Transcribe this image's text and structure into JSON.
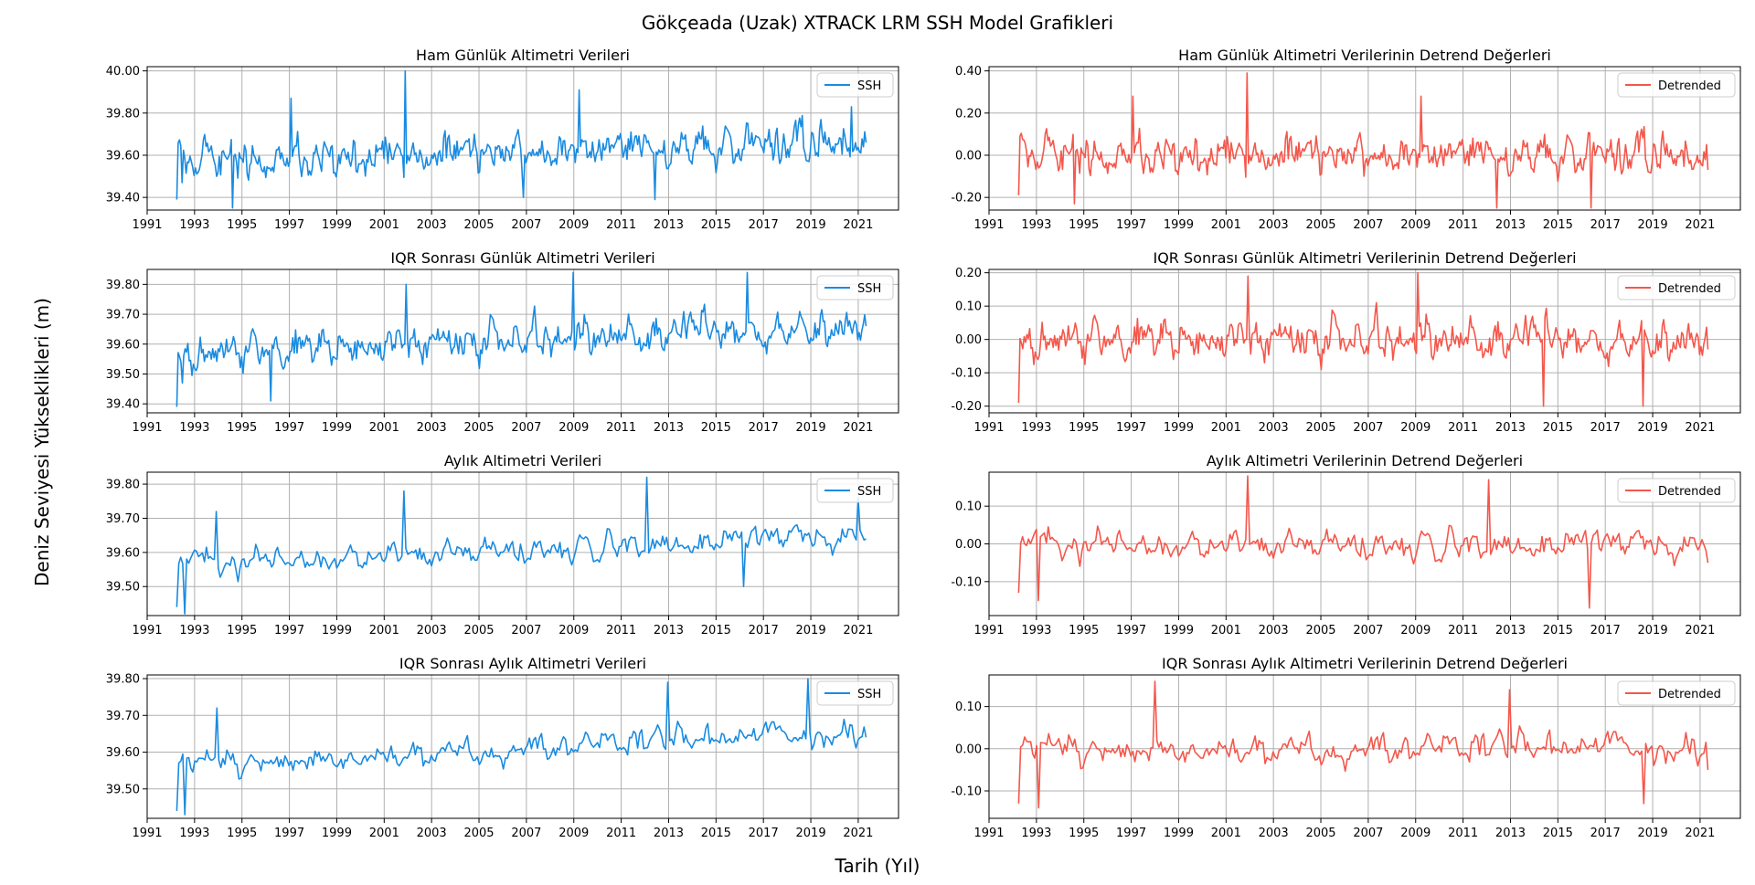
{
  "figure": {
    "suptitle": "Gökçeada (Uzak) XTRACK LRM SSH Model Grafikleri",
    "xlabel": "Tarih (Yıl)",
    "ylabel": "Deniz Seviyesi Yükseklikleri (m)"
  },
  "colors": {
    "ssh": "#1a8be0",
    "detrended": "#f4574b",
    "grid": "#b0b0b0"
  },
  "chart_data": [
    {
      "type": "line",
      "title": "Ham Günlük Altimetri Verileri",
      "xlim": [
        1991.0,
        2022.7
      ],
      "ylim": [
        39.34,
        40.02
      ],
      "xticks": [
        1991,
        1993,
        1995,
        1997,
        1999,
        2001,
        2003,
        2005,
        2007,
        2009,
        2011,
        2013,
        2015,
        2017,
        2019,
        2021
      ],
      "yticks": [
        39.4,
        39.6,
        39.8,
        40.0
      ],
      "ytick_labels": [
        "39.40",
        "39.60",
        "39.80",
        "40.00"
      ],
      "grid": true,
      "legend_position": "upper right",
      "series": [
        {
          "name": "SSH",
          "color": "#1a8be0",
          "x_start": 1992.25,
          "x_end": 2021.33,
          "base": 39.615,
          "trend": 0.0032,
          "amplitude": 0.18,
          "seed": 11,
          "points": 520,
          "anchors": [
            [
              1992.25,
              39.39
            ],
            [
              1992.5,
              39.47
            ],
            [
              1994.6,
              39.35
            ],
            [
              1997.05,
              39.87
            ],
            [
              2001.9,
              40.0
            ],
            [
              2006.9,
              39.4
            ],
            [
              2009.2,
              39.91
            ],
            [
              2012.4,
              39.39
            ],
            [
              2020.7,
              39.83
            ],
            [
              2021.33,
              39.66
            ]
          ]
        }
      ]
    },
    {
      "type": "line",
      "title": "Ham Günlük Altimetri Verilerinin Detrend Değerleri",
      "xlim": [
        1991.0,
        2022.7
      ],
      "ylim": [
        -0.26,
        0.42
      ],
      "xticks": [
        1991,
        1993,
        1995,
        1997,
        1999,
        2001,
        2003,
        2005,
        2007,
        2009,
        2011,
        2013,
        2015,
        2017,
        2019,
        2021
      ],
      "yticks": [
        -0.2,
        0.0,
        0.2,
        0.4
      ],
      "ytick_labels": [
        "-0.20",
        "0.00",
        "0.20",
        "0.40"
      ],
      "grid": true,
      "legend_position": "upper right",
      "series": [
        {
          "name": "Detrended",
          "color": "#f4574b",
          "x_start": 1992.25,
          "x_end": 2021.33,
          "base": 0.0,
          "trend": 0.0,
          "amplitude": 0.18,
          "seed": 11,
          "points": 520,
          "anchors": [
            [
              1992.25,
              -0.19
            ],
            [
              1994.6,
              -0.23
            ],
            [
              1997.05,
              0.28
            ],
            [
              2001.9,
              0.39
            ],
            [
              2009.2,
              0.28
            ],
            [
              2012.4,
              -0.25
            ],
            [
              2016.4,
              -0.25
            ],
            [
              2021.33,
              -0.07
            ]
          ]
        }
      ]
    },
    {
      "type": "line",
      "title": "IQR Sonrası Günlük Altimetri Verileri",
      "xlim": [
        1991.0,
        2022.7
      ],
      "ylim": [
        39.37,
        39.85
      ],
      "xticks": [
        1991,
        1993,
        1995,
        1997,
        1999,
        2001,
        2003,
        2005,
        2007,
        2009,
        2011,
        2013,
        2015,
        2017,
        2019,
        2021
      ],
      "yticks": [
        39.4,
        39.5,
        39.6,
        39.7,
        39.8
      ],
      "ytick_labels": [
        "39.40",
        "39.50",
        "39.60",
        "39.70",
        "39.80"
      ],
      "grid": true,
      "legend_position": "upper right",
      "series": [
        {
          "name": "SSH",
          "color": "#1a8be0",
          "x_start": 1992.25,
          "x_end": 2021.33,
          "base": 39.615,
          "trend": 0.0032,
          "amplitude": 0.12,
          "seed": 23,
          "points": 500,
          "anchors": [
            [
              1992.25,
              39.39
            ],
            [
              1992.5,
              39.47
            ],
            [
              1996.2,
              39.41
            ],
            [
              2001.9,
              39.8
            ],
            [
              2009.0,
              39.84
            ],
            [
              2016.3,
              39.84
            ],
            [
              2021.33,
              39.66
            ]
          ]
        }
      ]
    },
    {
      "type": "line",
      "title": "IQR Sonrası Günlük Altimetri Verilerinin Detrend Değerleri",
      "xlim": [
        1991.0,
        2022.7
      ],
      "ylim": [
        -0.22,
        0.21
      ],
      "xticks": [
        1991,
        1993,
        1995,
        1997,
        1999,
        2001,
        2003,
        2005,
        2007,
        2009,
        2011,
        2013,
        2015,
        2017,
        2019,
        2021
      ],
      "yticks": [
        -0.2,
        -0.1,
        0.0,
        0.1,
        0.2
      ],
      "ytick_labels": [
        "-0.20",
        "-0.10",
        "0.00",
        "0.10",
        "0.20"
      ],
      "grid": true,
      "legend_position": "upper right",
      "series": [
        {
          "name": "Detrended",
          "color": "#f4574b",
          "x_start": 1992.25,
          "x_end": 2021.33,
          "base": 0.0,
          "trend": 0.0,
          "amplitude": 0.12,
          "seed": 23,
          "points": 500,
          "anchors": [
            [
              1992.25,
              -0.19
            ],
            [
              2001.9,
              0.19
            ],
            [
              2009.1,
              0.2
            ],
            [
              2014.4,
              -0.2
            ],
            [
              2018.6,
              -0.2
            ],
            [
              2021.33,
              -0.03
            ]
          ]
        }
      ]
    },
    {
      "type": "line",
      "title": "Aylık Altimetri Verileri",
      "xlim": [
        1991.0,
        2022.7
      ],
      "ylim": [
        39.415,
        39.835
      ],
      "xticks": [
        1991,
        1993,
        1995,
        1997,
        1999,
        2001,
        2003,
        2005,
        2007,
        2009,
        2011,
        2013,
        2015,
        2017,
        2019,
        2021
      ],
      "yticks": [
        39.5,
        39.6,
        39.7,
        39.8
      ],
      "ytick_labels": [
        "39.50",
        "39.60",
        "39.70",
        "39.80"
      ],
      "grid": true,
      "legend_position": "upper right",
      "series": [
        {
          "name": "SSH",
          "color": "#1a8be0",
          "x_start": 1992.25,
          "x_end": 2021.33,
          "base": 39.61,
          "trend": 0.003,
          "amplitude": 0.075,
          "seed": 37,
          "points": 350,
          "anchors": [
            [
              1992.25,
              39.44
            ],
            [
              1992.55,
              39.42
            ],
            [
              1993.9,
              39.72
            ],
            [
              2001.85,
              39.78
            ],
            [
              2012.1,
              39.82
            ],
            [
              2016.2,
              39.5
            ],
            [
              2021.0,
              39.76
            ],
            [
              2021.33,
              39.64
            ]
          ]
        }
      ]
    },
    {
      "type": "line",
      "title": "Aylık Altimetri Verilerinin Detrend Değerleri",
      "xlim": [
        1991.0,
        2022.7
      ],
      "ylim": [
        -0.19,
        0.19
      ],
      "xticks": [
        1991,
        1993,
        1995,
        1997,
        1999,
        2001,
        2003,
        2005,
        2007,
        2009,
        2011,
        2013,
        2015,
        2017,
        2019,
        2021
      ],
      "yticks": [
        -0.1,
        0.0,
        0.1
      ],
      "ytick_labels": [
        "-0.10",
        "0.00",
        "0.10"
      ],
      "grid": true,
      "legend_position": "upper right",
      "series": [
        {
          "name": "Detrended",
          "color": "#f4574b",
          "x_start": 1992.25,
          "x_end": 2021.33,
          "base": 0.0,
          "trend": 0.0,
          "amplitude": 0.075,
          "seed": 37,
          "points": 350,
          "anchors": [
            [
              1992.25,
              -0.13
            ],
            [
              1993.1,
              -0.15
            ],
            [
              2001.95,
              0.18
            ],
            [
              2012.1,
              0.17
            ],
            [
              2016.3,
              -0.17
            ],
            [
              2021.33,
              -0.05
            ]
          ]
        }
      ]
    },
    {
      "type": "line",
      "title": "IQR Sonrası Aylık Altimetri Verileri",
      "xlim": [
        1991.0,
        2022.7
      ],
      "ylim": [
        39.42,
        39.81
      ],
      "xticks": [
        1991,
        1993,
        1995,
        1997,
        1999,
        2001,
        2003,
        2005,
        2007,
        2009,
        2011,
        2013,
        2015,
        2017,
        2019,
        2021
      ],
      "yticks": [
        39.5,
        39.6,
        39.7,
        39.8
      ],
      "ytick_labels": [
        "39.50",
        "39.60",
        "39.70",
        "39.80"
      ],
      "grid": true,
      "legend_position": "upper right",
      "series": [
        {
          "name": "SSH",
          "color": "#1a8be0",
          "x_start": 1992.25,
          "x_end": 2021.33,
          "base": 39.61,
          "trend": 0.003,
          "amplitude": 0.07,
          "seed": 41,
          "points": 345,
          "anchors": [
            [
              1992.25,
              39.44
            ],
            [
              1992.55,
              39.43
            ],
            [
              1993.9,
              39.72
            ],
            [
              2013.0,
              39.79
            ],
            [
              2018.9,
              39.8
            ],
            [
              2021.33,
              39.64
            ]
          ]
        }
      ]
    },
    {
      "type": "line",
      "title": "IQR Sonrası Aylık Altimetri Verilerinin Detrend Değerleri",
      "xlim": [
        1991.0,
        2022.7
      ],
      "ylim": [
        -0.165,
        0.175
      ],
      "xticks": [
        1991,
        1993,
        1995,
        1997,
        1999,
        2001,
        2003,
        2005,
        2007,
        2009,
        2011,
        2013,
        2015,
        2017,
        2019,
        2021
      ],
      "yticks": [
        -0.1,
        0.0,
        0.1
      ],
      "ytick_labels": [
        "-0.10",
        "0.00",
        "0.10"
      ],
      "grid": true,
      "legend_position": "upper right",
      "series": [
        {
          "name": "Detrended",
          "color": "#f4574b",
          "x_start": 1992.25,
          "x_end": 2021.33,
          "base": 0.0,
          "trend": 0.0,
          "amplitude": 0.07,
          "seed": 41,
          "points": 345,
          "anchors": [
            [
              1992.25,
              -0.13
            ],
            [
              1993.1,
              -0.14
            ],
            [
              1998.0,
              0.16
            ],
            [
              2013.0,
              0.14
            ],
            [
              2018.6,
              -0.13
            ],
            [
              2021.33,
              -0.05
            ]
          ]
        }
      ]
    }
  ]
}
